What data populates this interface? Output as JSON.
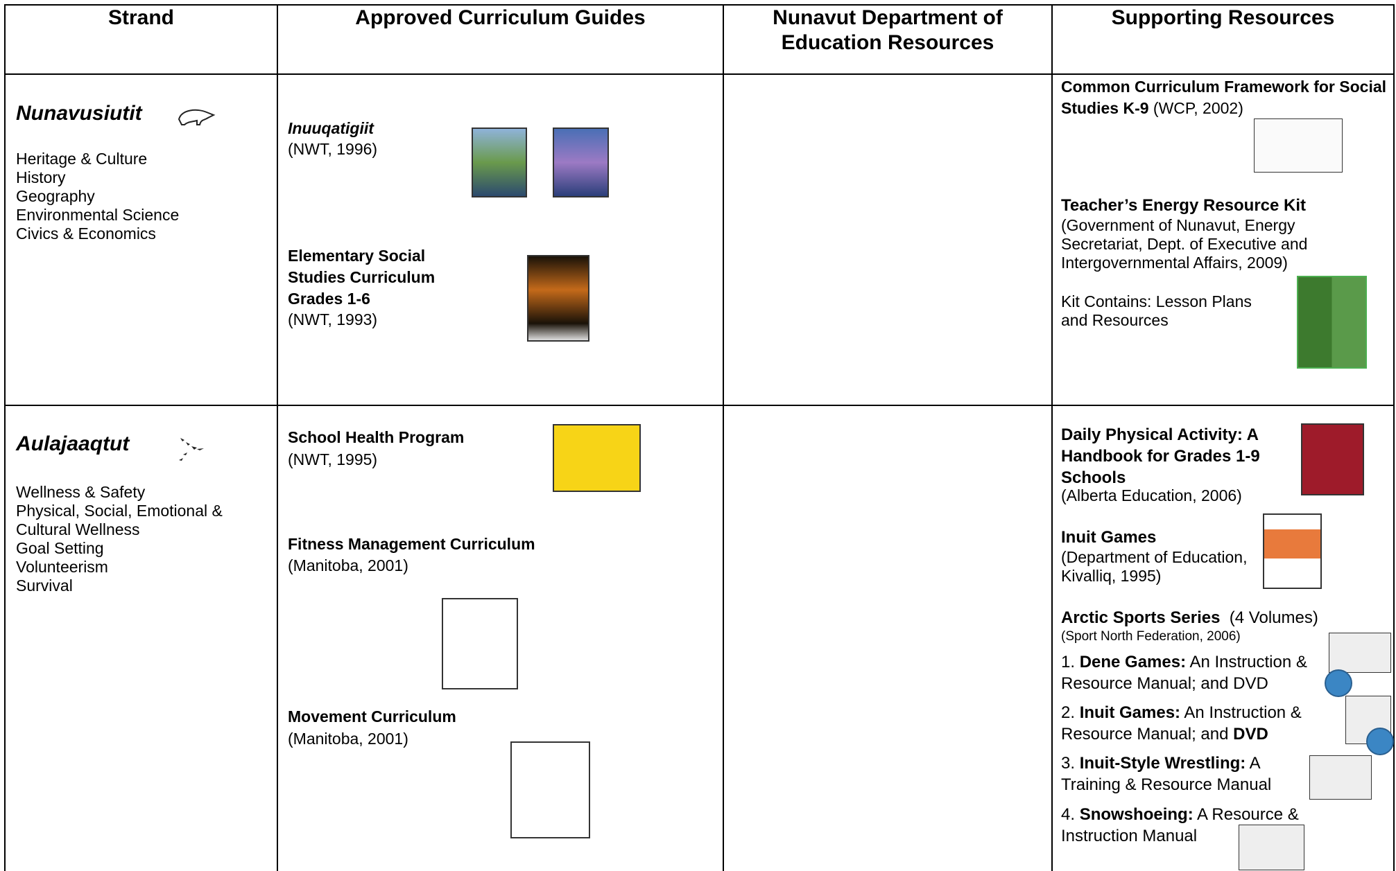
{
  "table": {
    "headers": [
      "Strand",
      "Approved Curriculum Guides",
      "Nunavut Department of Education Resources",
      "Supporting Resources"
    ],
    "rows": [
      {
        "strand": {
          "name": "Nunavusiutit",
          "topics": [
            "Heritage & Culture",
            "History",
            "Geography",
            "Environmental Science",
            "Civics & Economics"
          ]
        },
        "guides": [
          {
            "title": "Inuuqatigiit",
            "source": "(NWT, 1996)"
          },
          {
            "title": "Elementary Social Studies Curriculum Grades 1-6",
            "source": "(NWT, 1993)"
          }
        ],
        "resources": [
          {
            "title": "Common Curriculum Framework for Social Studies K-9",
            "source": "(WCP, 2002)"
          },
          {
            "title": "Teacher’s Energy Resource Kit",
            "source": "(Government of Nunavut, Energy Secretariat, Dept. of Executive and Intergovernmental Affairs, 2009)",
            "note": "Kit Contains: Lesson Plans and Resources"
          }
        ]
      },
      {
        "strand": {
          "name": "Aulajaaqtut",
          "topics": [
            "Wellness & Safety",
            "Physical, Social, Emotional & Cultural Wellness",
            "Goal Setting",
            "Volunteerism",
            "Survival"
          ]
        },
        "guides": [
          {
            "title": "School Health Program",
            "source": "(NWT, 1995)"
          },
          {
            "title": "Fitness Management Curriculum",
            "source": "(Manitoba, 2001)"
          },
          {
            "title": "Movement Curriculum",
            "source": "(Manitoba, 2001)"
          }
        ],
        "resources": [
          {
            "title": "Daily Physical Activity: A Handbook for Grades 1-9 Schools",
            "source": "(Alberta Education, 2006)"
          },
          {
            "title": "Inuit Games",
            "source": "(Department of Education, Kivalliq, 1995)"
          },
          {
            "title": "Arctic Sports Series",
            "count": "(4 Volumes)",
            "source": "(Sport North Federation, 2006)",
            "volumes": [
              {
                "number": "1.",
                "title": "Dene Games:",
                "text": "An Instruction & Resource Manual; and DVD"
              },
              {
                "number": "2.",
                "title": "Inuit Games:",
                "text": "An Instruction & Resource Manual; and",
                "emphasis": "DVD"
              },
              {
                "number": "3.",
                "title": "Inuit-Style Wrestling:",
                "text": "A Training & Resource Manual"
              },
              {
                "number": "4.",
                "title": "Snowshoeing:",
                "text": "A Resource & Instruction Manual"
              }
            ]
          }
        ]
      }
    ]
  }
}
